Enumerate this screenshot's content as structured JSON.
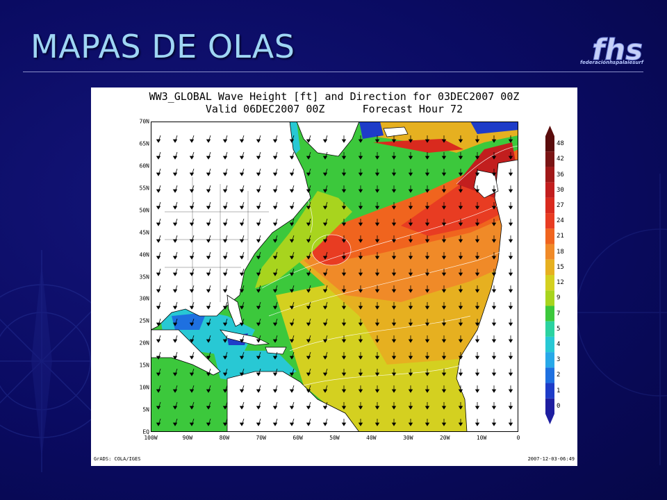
{
  "slide": {
    "title": "MAPAS DE OLAS",
    "logo_text": "fhs",
    "logo_tagline": "federaciónhspalaiesurf"
  },
  "figure": {
    "title_line1": "WW3_GLOBAL Wave Height [ft] and Direction for 03DEC2007 00Z",
    "title_line2": "Valid 06DEC2007 00Z      Forecast Hour 72",
    "credit": "GrADS: COLA/IGES",
    "timestamp": "2007-12-03-06:49",
    "lat_labels": [
      "70N",
      "65N",
      "60N",
      "55N",
      "50N",
      "45N",
      "40N",
      "35N",
      "30N",
      "25N",
      "20N",
      "15N",
      "10N",
      "5N",
      "EQ"
    ],
    "lon_labels": [
      "100W",
      "90W",
      "80W",
      "70W",
      "60W",
      "50W",
      "40W",
      "30W",
      "20W",
      "10W",
      "0"
    ],
    "colorbar": {
      "labels": [
        "48",
        "42",
        "36",
        "30",
        "27",
        "24",
        "21",
        "18",
        "15",
        "12",
        "9",
        "7",
        "5",
        "4",
        "3",
        "2",
        "1",
        "0"
      ],
      "colors": [
        "#5a0c0c",
        "#7a1414",
        "#a01818",
        "#c21e1e",
        "#d92a1e",
        "#e83c22",
        "#f0641e",
        "#f08a28",
        "#e6b020",
        "#d4d020",
        "#a8d41e",
        "#3cc83c",
        "#2bd2a0",
        "#28c8d4",
        "#28a8e8",
        "#1e70e0",
        "#1e3cc8",
        "#1e1ea0"
      ],
      "scale": "ft"
    },
    "arrows_direction": "wave direction vectors"
  }
}
